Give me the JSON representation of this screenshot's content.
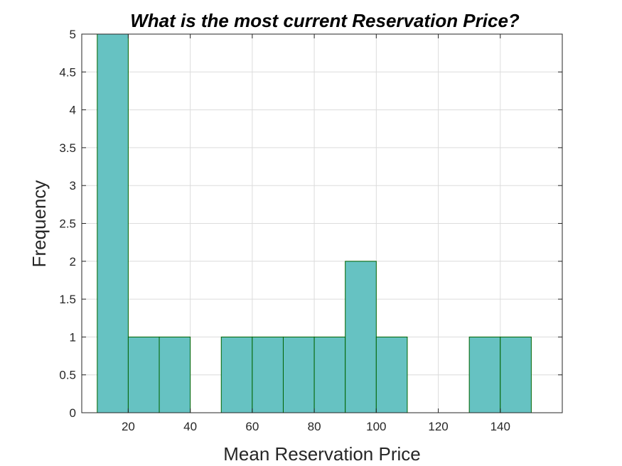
{
  "chart_data": {
    "type": "bar",
    "title": "What is the most current Reservation Price?",
    "xlabel": "Mean Reservation Price",
    "ylabel": "Frequency",
    "xlim": [
      5,
      160
    ],
    "ylim": [
      0,
      5
    ],
    "xticks": [
      20,
      40,
      60,
      80,
      100,
      120,
      140
    ],
    "yticks": [
      0,
      0.5,
      1,
      1.5,
      2,
      2.5,
      3,
      3.5,
      4,
      4.5,
      5
    ],
    "bins": [
      {
        "start": 10,
        "end": 20,
        "count": 5
      },
      {
        "start": 20,
        "end": 30,
        "count": 1
      },
      {
        "start": 30,
        "end": 40,
        "count": 1
      },
      {
        "start": 40,
        "end": 50,
        "count": 0
      },
      {
        "start": 50,
        "end": 60,
        "count": 1
      },
      {
        "start": 60,
        "end": 70,
        "count": 1
      },
      {
        "start": 70,
        "end": 80,
        "count": 1
      },
      {
        "start": 80,
        "end": 90,
        "count": 1
      },
      {
        "start": 90,
        "end": 100,
        "count": 2
      },
      {
        "start": 100,
        "end": 110,
        "count": 1
      },
      {
        "start": 110,
        "end": 120,
        "count": 0
      },
      {
        "start": 120,
        "end": 130,
        "count": 0
      },
      {
        "start": 130,
        "end": 140,
        "count": 1
      },
      {
        "start": 140,
        "end": 150,
        "count": 1
      }
    ],
    "grid": true,
    "bar_color": "#66c2c2",
    "edge_color": "#006400"
  }
}
